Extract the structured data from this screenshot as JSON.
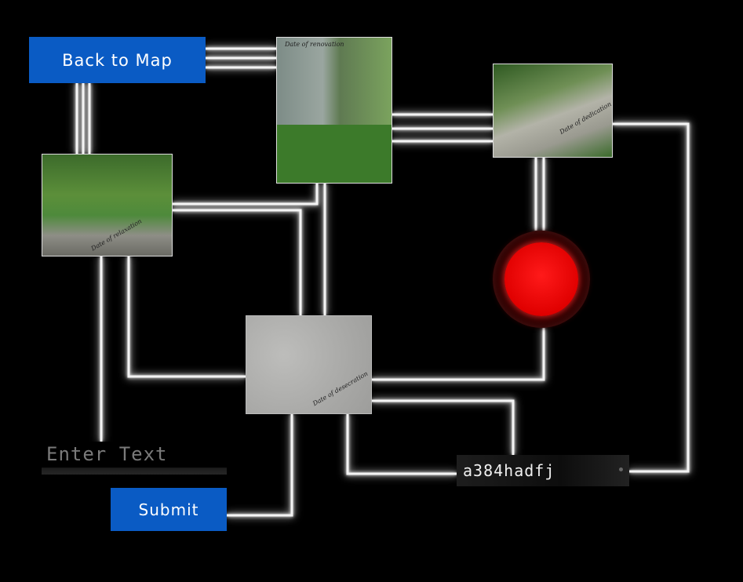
{
  "buttons": {
    "back_label": "Back to Map",
    "submit_label": "Submit"
  },
  "photos": {
    "renovation_caption": "Date of renovation",
    "dedication_caption": "Date of dedication",
    "relaxation_caption": "Date of relaxation",
    "desecration_caption": "Date of desecration"
  },
  "input": {
    "placeholder": "Enter Text"
  },
  "code": {
    "value": "a384hadfj"
  },
  "colors": {
    "background": "#000000",
    "button": "#0a5bc4",
    "wire": "#f4f4f4",
    "red_button": "#e00000"
  },
  "icons": {
    "red_button": "big-red-button-icon"
  }
}
